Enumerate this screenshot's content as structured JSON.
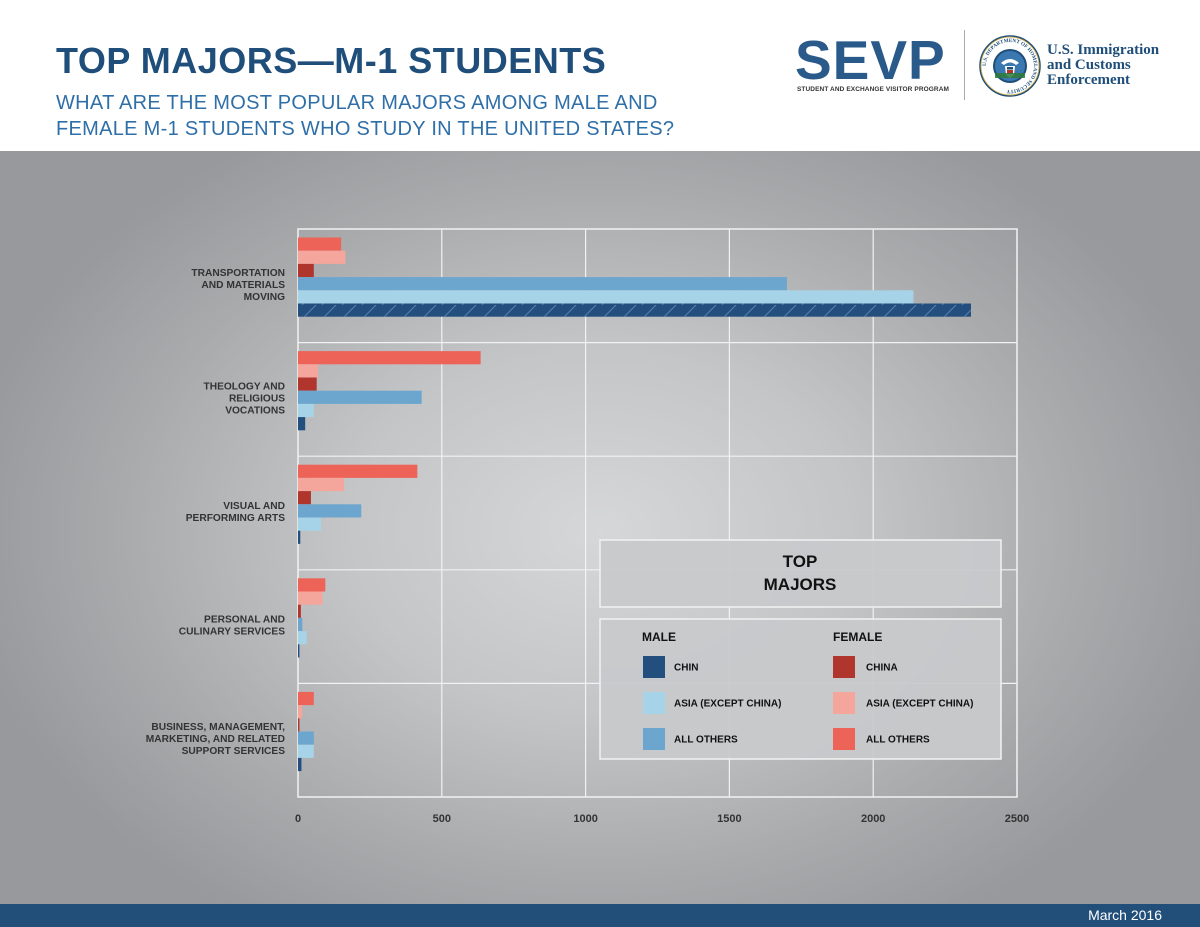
{
  "header": {
    "title": "TOP MAJORS—M-1 STUDENTS",
    "subtitle_line1": "WHAT ARE THE MOST POPULAR MAJORS AMONG MALE AND",
    "subtitle_line2": "FEMALE M-1 STUDENTS WHO STUDY IN THE UNITED STATES?",
    "sevp_logo_text": "SEVP",
    "sevp_logo_tagline": "STUDENT AND EXCHANGE VISITOR PROGRAM",
    "agency_line1": "U.S. Immigration",
    "agency_line2": "and Customs",
    "agency_line3": "Enforcement",
    "seal_text": "U.S. DEPARTMENT OF HOMELAND SECURITY"
  },
  "footer": {
    "date": "March 2016"
  },
  "colors": {
    "male_china": "#234f7e",
    "male_asia": "#a6d3e8",
    "male_others": "#6ca6ce",
    "female_china": "#b0352c",
    "female_asia": "#f4a59c",
    "female_others": "#ee6358",
    "title": "#1e4e79",
    "subtitle": "#2f6fa8",
    "footer": "#224f7a"
  },
  "chart_data": {
    "type": "bar",
    "orientation": "horizontal",
    "title": "",
    "xlabel": "",
    "ylabel": "",
    "xlim": [
      0,
      2500
    ],
    "xticks": [
      0,
      500,
      1000,
      1500,
      2000,
      2500
    ],
    "grid": true,
    "categories": [
      [
        "TRANSPORTATION",
        "AND MATERIALS",
        "MOVING"
      ],
      [
        "THEOLOGY AND",
        "RELIGIOUS",
        "VOCATIONS"
      ],
      [
        "VISUAL AND",
        "PERFORMING ARTS"
      ],
      [
        "PERSONAL AND",
        "CULINARY SERVICES"
      ],
      [
        "BUSINESS, MANAGEMENT,",
        "MARKETING, AND RELATED",
        "SUPPORT SERVICES"
      ]
    ],
    "series": [
      {
        "name": "ALL OTHERS",
        "group": "FEMALE",
        "color_key": "female_others",
        "values": [
          150,
          635,
          415,
          95,
          55
        ]
      },
      {
        "name": "ASIA (EXCEPT CHINA)",
        "group": "FEMALE",
        "color_key": "female_asia",
        "values": [
          165,
          70,
          160,
          85,
          15
        ]
      },
      {
        "name": "CHINA",
        "group": "FEMALE",
        "color_key": "female_china",
        "values": [
          55,
          65,
          45,
          10,
          5
        ]
      },
      {
        "name": "ALL OTHERS",
        "group": "MALE",
        "color_key": "male_others",
        "values": [
          1700,
          430,
          220,
          15,
          55
        ]
      },
      {
        "name": "ASIA (EXCEPT CHINA)",
        "group": "MALE",
        "color_key": "male_asia",
        "values": [
          2140,
          55,
          80,
          30,
          55
        ]
      },
      {
        "name": "CHIN",
        "group": "MALE",
        "color_key": "male_china",
        "values": [
          2340,
          25,
          8,
          5,
          12
        ]
      }
    ],
    "legend": {
      "placement": "bottom-right",
      "title_line1": "TOP",
      "title_line2": "MAJORS",
      "male_header": "MALE",
      "female_header": "FEMALE",
      "male_items": [
        {
          "label": "CHIN",
          "color_key": "male_china"
        },
        {
          "label": "ASIA (EXCEPT CHINA)",
          "color_key": "male_asia"
        },
        {
          "label": "ALL OTHERS",
          "color_key": "male_others"
        }
      ],
      "female_items": [
        {
          "label": "CHINA",
          "color_key": "female_china"
        },
        {
          "label": "ASIA (EXCEPT CHINA)",
          "color_key": "female_asia"
        },
        {
          "label": "ALL OTHERS",
          "color_key": "female_others"
        }
      ]
    }
  }
}
